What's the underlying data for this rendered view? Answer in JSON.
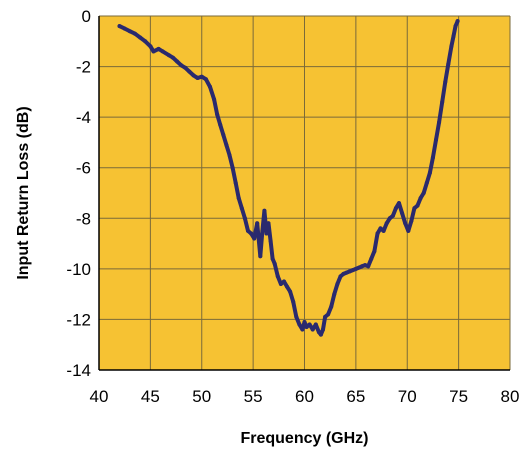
{
  "chart_data": {
    "type": "line",
    "title": "",
    "xlabel": "Frequency (GHz)",
    "ylabel": "Input Return Loss (dB)",
    "xlim": [
      40,
      80
    ],
    "ylim": [
      -14,
      0
    ],
    "x_ticks": [
      40,
      45,
      50,
      55,
      60,
      65,
      70,
      75,
      80
    ],
    "y_ticks": [
      0,
      -2,
      -4,
      -6,
      -8,
      -10,
      -12,
      -14
    ],
    "x_tick_labels": [
      "40",
      "45",
      "50",
      "55",
      "60",
      "65",
      "70",
      "75",
      "80"
    ],
    "y_tick_labels": [
      "0",
      "-2",
      "-4",
      "-6",
      "-8",
      "-10",
      "-12",
      "-14"
    ],
    "grid": true,
    "legend": "none",
    "colors": {
      "plot_background": "#F6C233",
      "grid": "#7A6A3A",
      "line": "#2A2A6E",
      "axis": "#000000"
    },
    "series": [
      {
        "x": [
          42.0,
          42.5,
          43.0,
          43.5,
          44.0,
          44.5,
          45.0,
          45.3,
          45.8,
          46.2,
          46.8,
          47.2,
          47.6,
          48.0,
          48.4,
          48.8,
          49.2,
          49.6,
          50.0,
          50.4,
          50.8,
          51.2,
          51.5,
          51.8,
          52.1,
          52.4,
          52.7,
          53.0,
          53.3,
          53.6,
          53.9,
          54.2,
          54.5,
          54.8,
          55.1,
          55.4,
          55.7,
          55.9,
          56.1,
          56.3,
          56.5,
          56.7,
          56.9,
          57.1,
          57.4,
          57.7,
          58.0,
          58.3,
          58.6,
          58.9,
          59.2,
          59.5,
          59.8,
          60.0,
          60.2,
          60.5,
          60.8,
          61.1,
          61.4,
          61.6,
          61.8,
          62.0,
          62.3,
          62.6,
          62.9,
          63.2,
          63.5,
          63.8,
          64.1,
          64.4,
          64.7,
          65.0,
          65.3,
          65.6,
          65.9,
          66.2,
          66.5,
          66.8,
          67.1,
          67.4,
          67.7,
          68.0,
          68.3,
          68.6,
          68.9,
          69.2,
          69.5,
          69.8,
          70.1,
          70.4,
          70.7,
          71.0,
          71.3,
          71.6,
          71.9,
          72.2,
          72.5,
          72.8,
          73.1,
          73.4,
          73.7,
          74.0,
          74.3,
          74.5,
          74.7,
          74.9
        ],
        "y": [
          -0.4,
          -0.5,
          -0.6,
          -0.7,
          -0.85,
          -1.0,
          -1.2,
          -1.4,
          -1.3,
          -1.4,
          -1.55,
          -1.65,
          -1.8,
          -1.95,
          -2.05,
          -2.2,
          -2.35,
          -2.45,
          -2.4,
          -2.5,
          -2.8,
          -3.3,
          -3.9,
          -4.3,
          -4.7,
          -5.1,
          -5.5,
          -6.0,
          -6.6,
          -7.2,
          -7.6,
          -8.0,
          -8.5,
          -8.6,
          -8.8,
          -8.2,
          -9.5,
          -8.5,
          -7.7,
          -8.6,
          -8.2,
          -8.9,
          -9.6,
          -9.8,
          -10.3,
          -10.6,
          -10.5,
          -10.7,
          -10.9,
          -11.3,
          -11.9,
          -12.2,
          -12.4,
          -12.1,
          -12.3,
          -12.2,
          -12.4,
          -12.2,
          -12.5,
          -12.6,
          -12.4,
          -11.9,
          -11.8,
          -11.5,
          -11.0,
          -10.6,
          -10.3,
          -10.2,
          -10.15,
          -10.1,
          -10.05,
          -10.0,
          -9.95,
          -9.9,
          -9.85,
          -9.9,
          -9.6,
          -9.3,
          -8.6,
          -8.4,
          -8.5,
          -8.2,
          -8.0,
          -7.9,
          -7.6,
          -7.4,
          -7.8,
          -8.2,
          -8.5,
          -8.1,
          -7.6,
          -7.5,
          -7.2,
          -7.0,
          -6.6,
          -6.2,
          -5.6,
          -4.9,
          -4.2,
          -3.4,
          -2.6,
          -1.9,
          -1.2,
          -0.8,
          -0.4,
          -0.2
        ]
      }
    ]
  }
}
